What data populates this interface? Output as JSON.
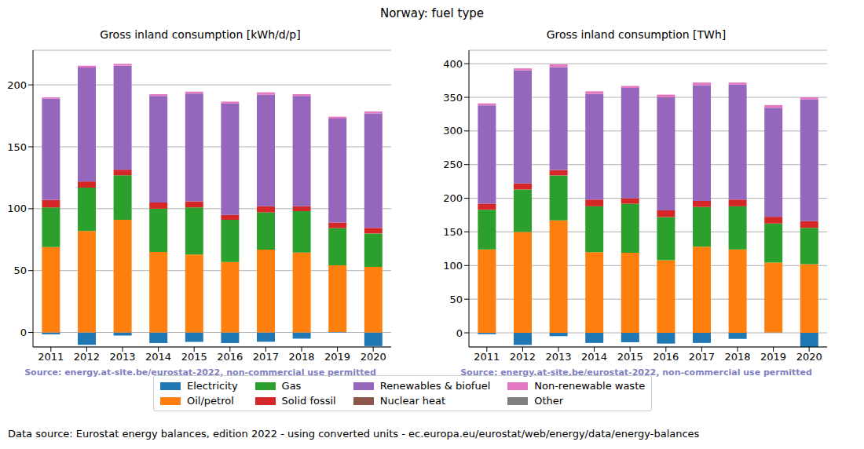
{
  "title": "Norway: fuel type",
  "footer": "Data source: Eurostat energy balances, edition 2022 - using converted units - ec.europa.eu/eurostat/web/energy/data/energy-balances",
  "chart_data": [
    {
      "type": "bar",
      "title": "Gross inland consumption [kWh/d/p]",
      "source": "Source: energy.at-site.be/eurostat-2022, non-commercial use permitted",
      "stacked": true,
      "grid": true,
      "categories": [
        "2011",
        "2012",
        "2013",
        "2014",
        "2015",
        "2016",
        "2017",
        "2018",
        "2019",
        "2020"
      ],
      "ylim": [
        -11.7,
        228
      ],
      "yticks": [
        0,
        50,
        100,
        150,
        200
      ],
      "series": [
        {
          "name": "Electricity",
          "color": "#1f77b4",
          "values": [
            -1.5,
            -10,
            -2.5,
            -8.5,
            -7.5,
            -8.5,
            -7.5,
            -5,
            0.3,
            -11
          ]
        },
        {
          "name": "Oil/petrol",
          "color": "#ff7f0e",
          "values": [
            69,
            82,
            91,
            65,
            63,
            57,
            67,
            64.5,
            54,
            53
          ]
        },
        {
          "name": "Gas",
          "color": "#2ca02c",
          "values": [
            32,
            35,
            36,
            35,
            38,
            34,
            30,
            33.5,
            30,
            27
          ]
        },
        {
          "name": "Solid fossil",
          "color": "#d62728",
          "values": [
            6,
            5,
            4.5,
            5,
            5,
            4,
            5,
            4,
            4.5,
            4.5
          ]
        },
        {
          "name": "Renewables & biofuel",
          "color": "#9467bd",
          "values": [
            82,
            92,
            84,
            86,
            87,
            90,
            90,
            89,
            84,
            92.5
          ]
        },
        {
          "name": "Nuclear heat",
          "color": "#8c564b",
          "values": [
            0,
            0,
            0,
            0,
            0,
            0,
            0,
            0,
            0,
            0
          ]
        },
        {
          "name": "Non-renewable waste",
          "color": "#e377c2",
          "values": [
            1,
            1.5,
            1.5,
            1.5,
            1.5,
            1.5,
            2,
            1.5,
            1.5,
            1.5
          ]
        },
        {
          "name": "Other",
          "color": "#7f7f7f",
          "values": [
            0,
            0,
            0,
            0,
            0,
            0,
            0,
            0,
            0,
            0
          ]
        }
      ]
    },
    {
      "type": "bar",
      "title": "Gross inland consumption [TWh]",
      "source": "Source: energy.at-site.be/eurostat-2022, non-commercial use permitted",
      "stacked": true,
      "grid": true,
      "categories": [
        "2011",
        "2012",
        "2013",
        "2014",
        "2015",
        "2016",
        "2017",
        "2018",
        "2019",
        "2020"
      ],
      "ylim": [
        -21,
        420
      ],
      "yticks": [
        0,
        50,
        100,
        150,
        200,
        250,
        300,
        350,
        400
      ],
      "series": [
        {
          "name": "Electricity",
          "color": "#1f77b4",
          "values": [
            -2,
            -18,
            -5,
            -15,
            -14,
            -16,
            -15,
            -9,
            0.5,
            -21
          ]
        },
        {
          "name": "Oil/petrol",
          "color": "#ff7f0e",
          "values": [
            124,
            150,
            167,
            120,
            119,
            108,
            128,
            124,
            104,
            102
          ]
        },
        {
          "name": "Gas",
          "color": "#2ca02c",
          "values": [
            59,
            63,
            67,
            68,
            73,
            64,
            59,
            64,
            58,
            54
          ]
        },
        {
          "name": "Solid fossil",
          "color": "#d62728",
          "values": [
            9,
            9,
            8,
            10,
            8,
            10,
            9,
            10,
            10,
            10
          ]
        },
        {
          "name": "Renewables & biofuel",
          "color": "#9467bd",
          "values": [
            146,
            168,
            153,
            157,
            164,
            168,
            172,
            171,
            162,
            181
          ]
        },
        {
          "name": "Nuclear heat",
          "color": "#8c564b",
          "values": [
            0,
            0,
            0,
            0,
            0,
            0,
            0,
            0,
            0,
            0
          ]
        },
        {
          "name": "Non-renewable waste",
          "color": "#e377c2",
          "values": [
            3,
            3,
            4,
            4,
            3,
            4,
            4,
            3,
            4,
            3
          ]
        },
        {
          "name": "Other",
          "color": "#7f7f7f",
          "values": [
            0,
            0,
            0,
            0,
            0,
            0,
            0,
            0,
            0,
            0
          ]
        }
      ]
    }
  ]
}
